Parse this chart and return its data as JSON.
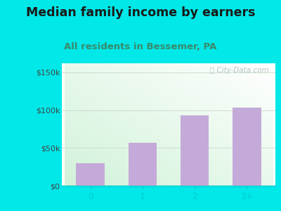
{
  "categories": [
    "0",
    "1",
    "2",
    "3+"
  ],
  "values": [
    30000,
    57000,
    93000,
    103000
  ],
  "bar_color": "#c4aad8",
  "title": "Median family income by earners",
  "subtitle": "All residents in Bessemer, PA",
  "title_fontsize": 12.5,
  "subtitle_fontsize": 9.5,
  "title_color": "#1a1a1a",
  "subtitle_color": "#3a8a6a",
  "outer_bg": "#00e8e8",
  "ylabel_ticks": [
    0,
    50000,
    100000,
    150000
  ],
  "ylabel_labels": [
    "$0",
    "$50k",
    "$100k",
    "$150k"
  ],
  "ylim": [
    0,
    162000
  ],
  "watermark": "City-Data.com",
  "tick_color": "#444444",
  "axis_color": "#00cccc",
  "grid_color": "#ccddcc"
}
